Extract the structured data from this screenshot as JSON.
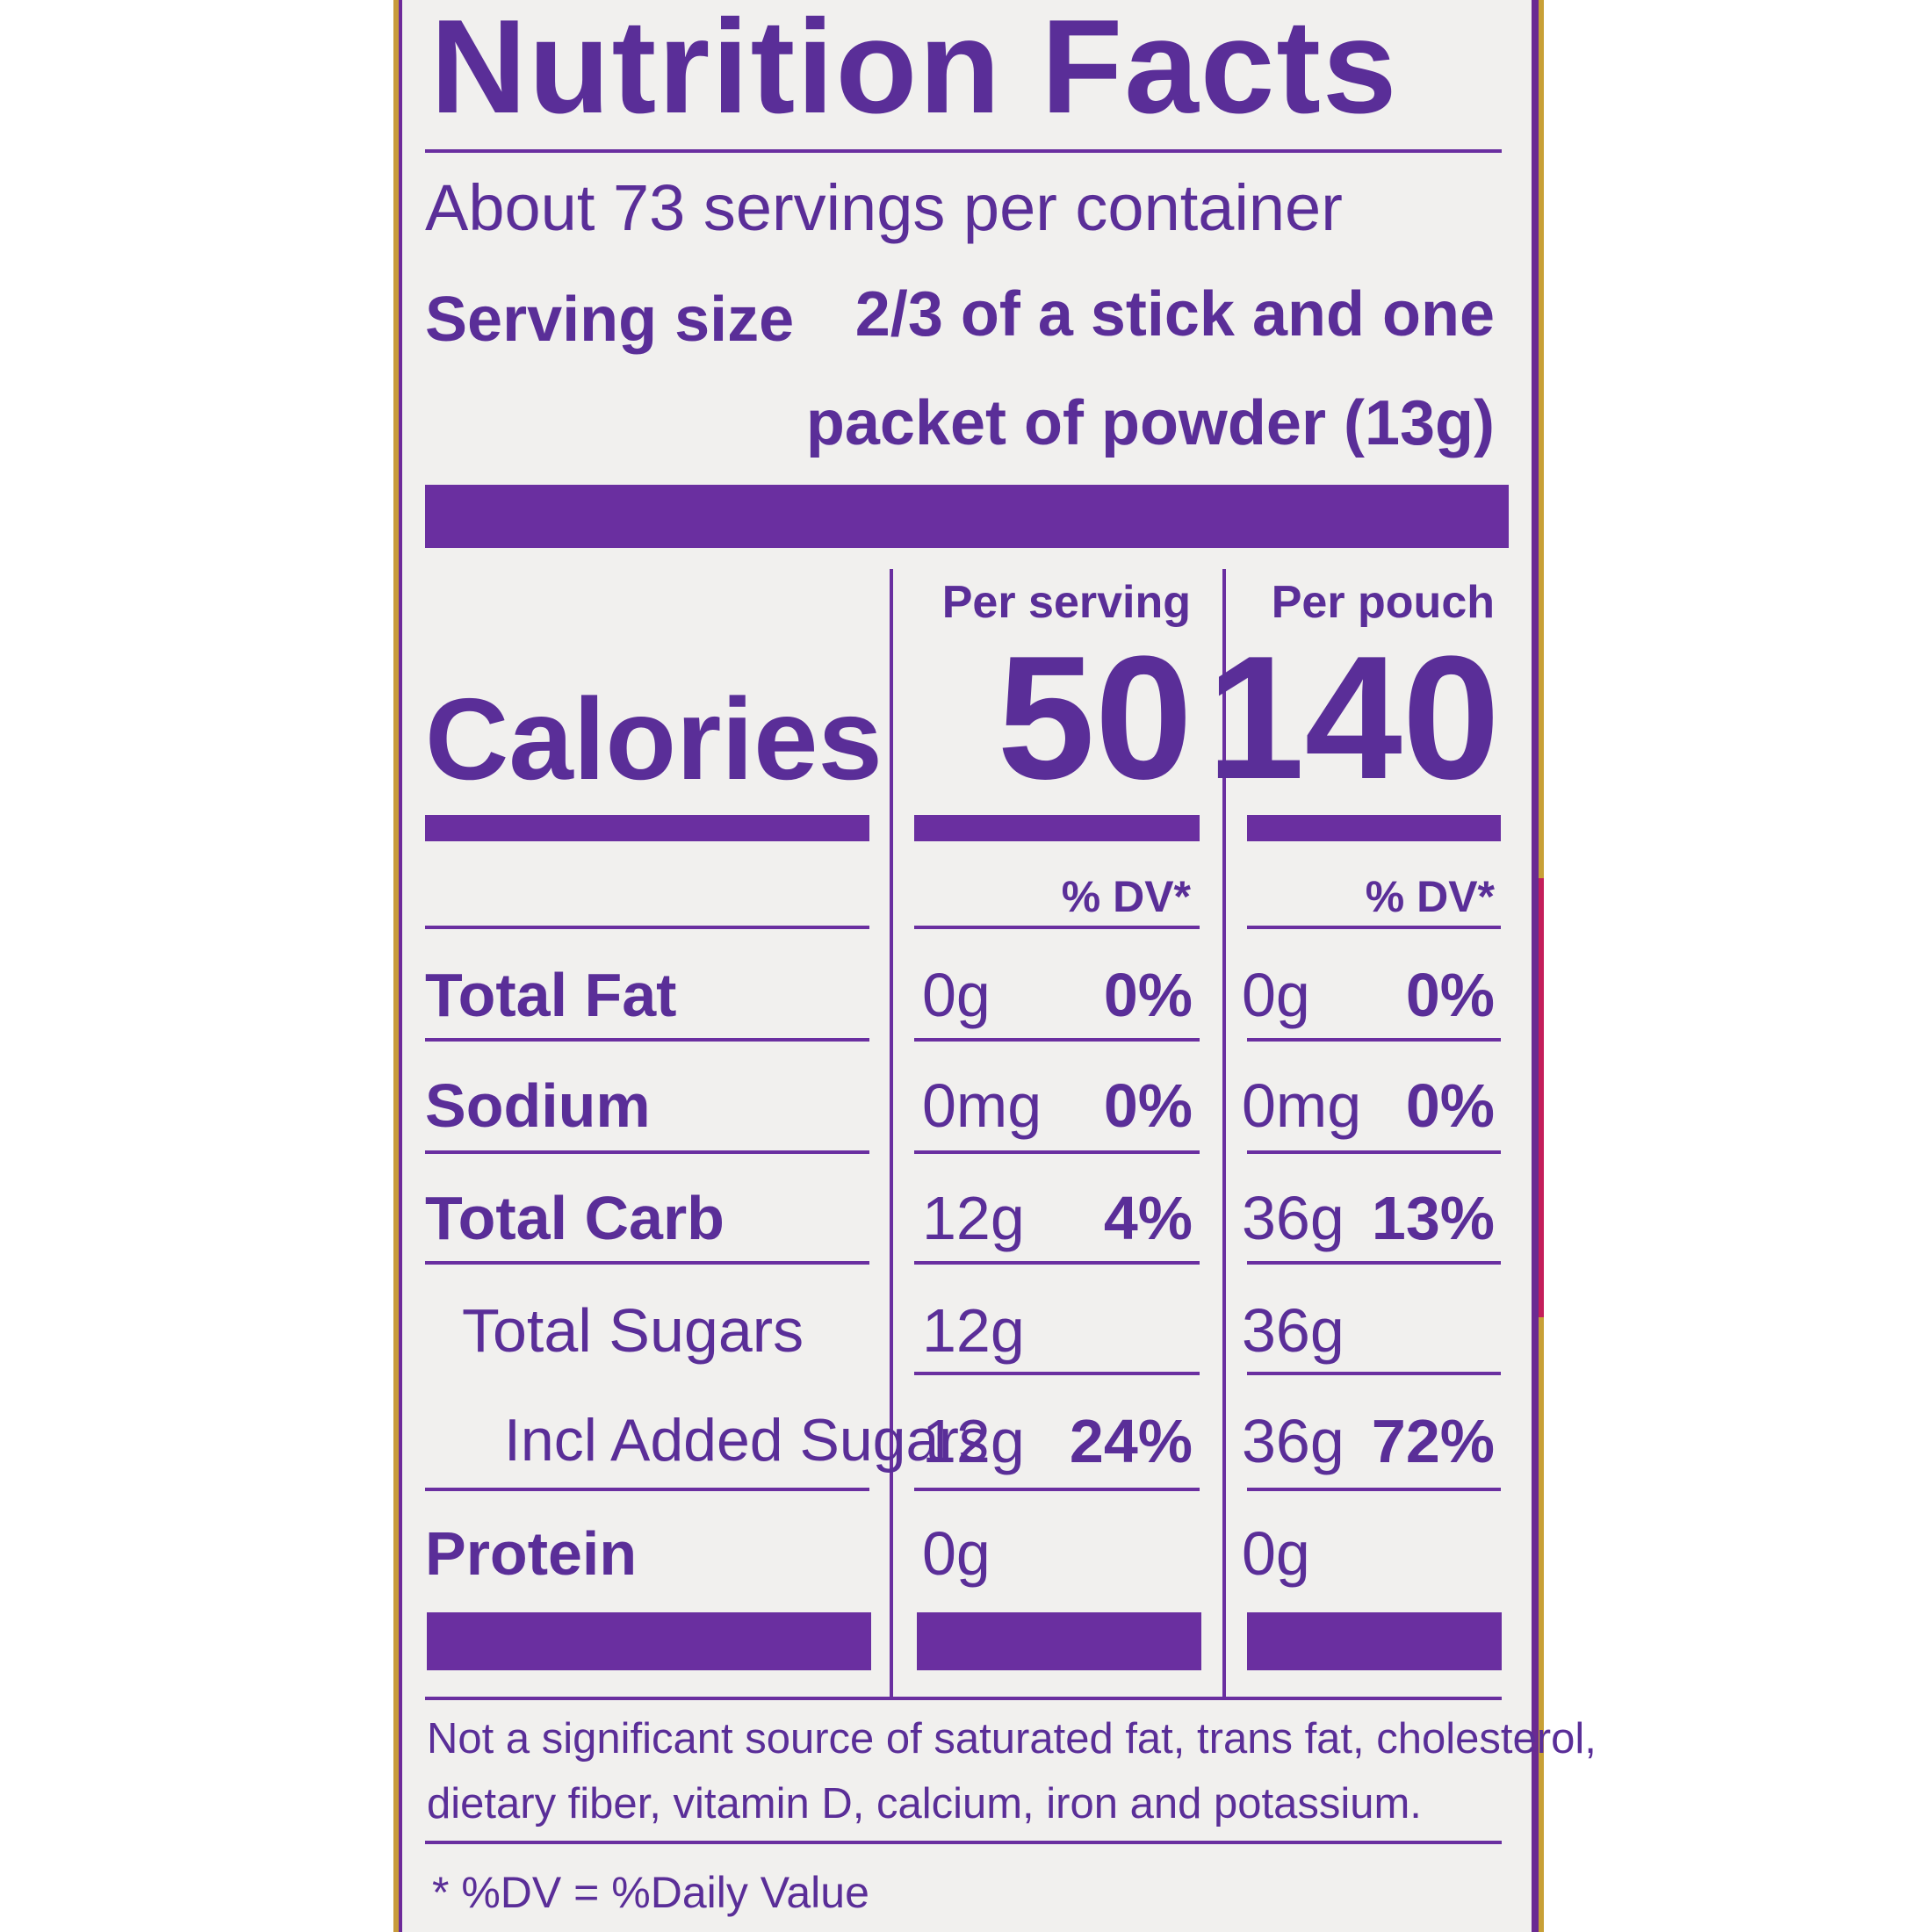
{
  "title": "Nutrition Facts",
  "servings_per_container": "About 73 servings per container",
  "serving_size": {
    "label": "Serving size",
    "value_line1": "2/3 of a stick and one",
    "value_line2": "packet of powder (13g)"
  },
  "columns": {
    "per_serving": "Per serving",
    "per_pouch": "Per pouch"
  },
  "calories": {
    "label": "Calories",
    "per_serving": "50",
    "per_pouch": "140"
  },
  "dv_header": "% DV*",
  "nutrients": [
    {
      "name": "Total Fat",
      "serving_amount": "0g",
      "serving_dv": "0%",
      "pouch_amount": "0g",
      "pouch_dv": "0%"
    },
    {
      "name": "Sodium",
      "serving_amount": "0mg",
      "serving_dv": "0%",
      "pouch_amount": "0mg",
      "pouch_dv": "0%"
    },
    {
      "name": "Total Carb",
      "serving_amount": "12g",
      "serving_dv": "4%",
      "pouch_amount": "36g",
      "pouch_dv": "13%"
    },
    {
      "name": "Total Sugars",
      "serving_amount": "12g",
      "serving_dv": "",
      "pouch_amount": "36g",
      "pouch_dv": ""
    },
    {
      "name": "Incl Added Sugars",
      "serving_amount": "12g",
      "serving_dv": "24%",
      "pouch_amount": "36g",
      "pouch_dv": "72%"
    },
    {
      "name": "Protein",
      "serving_amount": "0g",
      "serving_dv": "",
      "pouch_amount": "0g",
      "pouch_dv": ""
    }
  ],
  "footnote_line1": "Not a significant source of saturated fat, trans fat, cholesterol,",
  "footnote_line2": "dietary fiber, vitamin D, calcium, iron and potassium.",
  "dv_definition": "* %DV = %Daily Value",
  "colors": {
    "ink": "#5a2e98",
    "panel": "#f1f0ee",
    "border_gold": "#c89a3a"
  }
}
